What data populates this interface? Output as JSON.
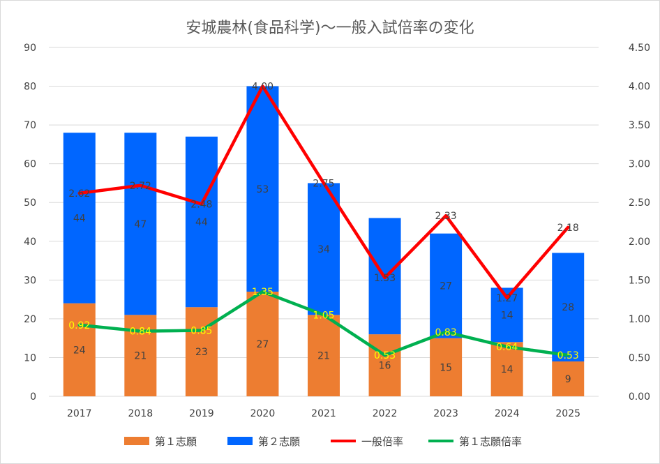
{
  "chart_data": {
    "type": "bar",
    "title": "安城農林(食品科学)～一般入試倍率の変化",
    "categories": [
      "2017",
      "2018",
      "2019",
      "2020",
      "2021",
      "2022",
      "2023",
      "2024",
      "2025"
    ],
    "ylim": [
      0,
      90
    ],
    "yticks": [
      "0",
      "10",
      "20",
      "30",
      "40",
      "50",
      "60",
      "70",
      "80",
      "90"
    ],
    "y2lim": [
      0,
      4.5
    ],
    "y2ticks": [
      "0.00",
      "0.50",
      "1.00",
      "1.50",
      "2.00",
      "2.50",
      "3.00",
      "3.50",
      "4.00",
      "4.50"
    ],
    "grid": true,
    "legend_position": "bottom",
    "bar_series": [
      {
        "name": "第１志願",
        "color": "#ed7d31",
        "values": [
          24,
          21,
          23,
          27,
          21,
          16,
          15,
          14,
          9
        ]
      },
      {
        "name": "第２志願",
        "color": "#0066ff",
        "values": [
          44,
          47,
          44,
          53,
          34,
          30,
          27,
          14,
          28
        ]
      }
    ],
    "bar_labels": {
      "first": [
        "24",
        "21",
        "23",
        "27",
        "21",
        "16",
        "15",
        "14",
        "9"
      ],
      "second": [
        "44",
        "47",
        "44",
        "53",
        "34",
        "",
        "27",
        "14",
        "28"
      ]
    },
    "line_series": [
      {
        "name": "一般倍率",
        "color": "#ff0000",
        "values": [
          2.62,
          2.72,
          2.48,
          4.0,
          2.75,
          1.53,
          2.33,
          1.27,
          2.18
        ]
      },
      {
        "name": "第１志願倍率",
        "color": "#00b050",
        "values": [
          0.92,
          0.84,
          0.85,
          1.35,
          1.05,
          0.53,
          0.83,
          0.64,
          0.53
        ]
      }
    ],
    "line_labels": {
      "general": [
        "2.62",
        "2.72",
        "2.48",
        "4.00",
        "2.75",
        "1.53",
        "2.33",
        "1.27",
        "2.18"
      ],
      "first": [
        "0.92",
        "0.84",
        "0.85",
        "1.35",
        "1.05",
        "0.53",
        "0.83",
        "0.64",
        "0.53"
      ]
    }
  }
}
